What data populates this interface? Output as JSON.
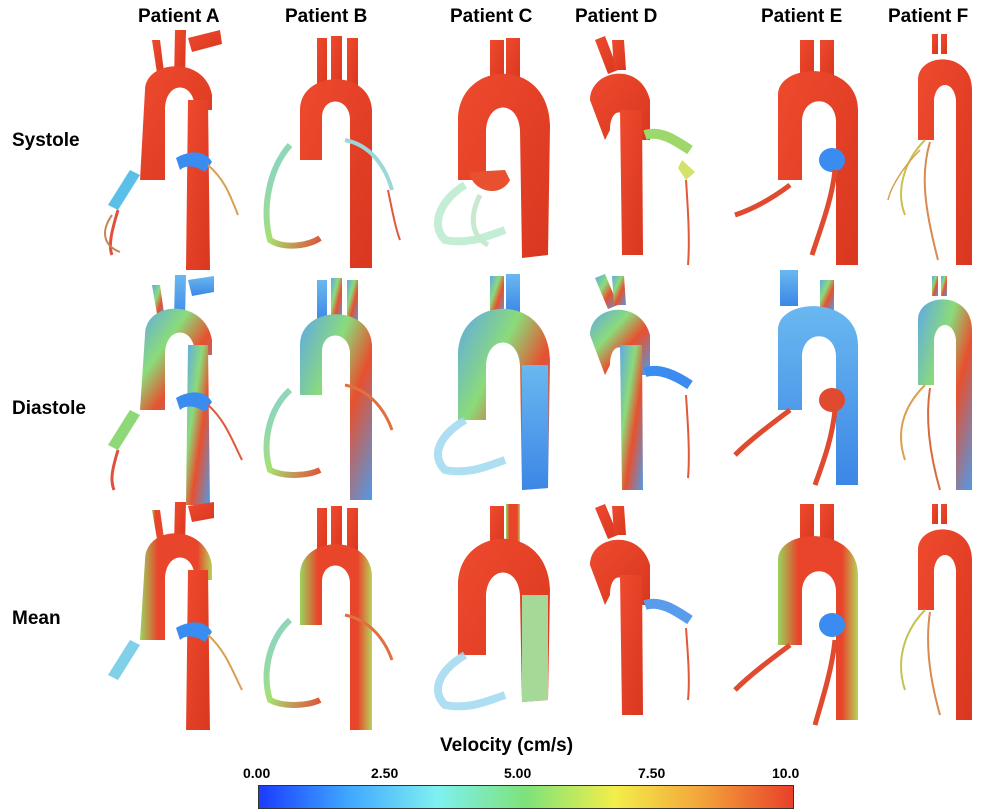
{
  "figure": {
    "columns": [
      "Patient A",
      "Patient B",
      "Patient C",
      "Patient D",
      "Patient E",
      "Patient F"
    ],
    "rows": [
      "Systole",
      "Diastole",
      "Mean"
    ],
    "colorbar": {
      "title": "Velocity (cm/s)",
      "ticks": [
        "0.00",
        "2.50",
        "5.00",
        "7.50",
        "10.0"
      ],
      "colormap": [
        "#1a3cff",
        "#3fa7ff",
        "#7ff0f0",
        "#7de27a",
        "#f3ee4a",
        "#f3a23a",
        "#e8402a"
      ]
    },
    "palette": {
      "high": "#e8402a",
      "mid_green": "#7fd46a",
      "low_blue": "#3a8cf0",
      "cyan": "#8fe6f0"
    }
  }
}
